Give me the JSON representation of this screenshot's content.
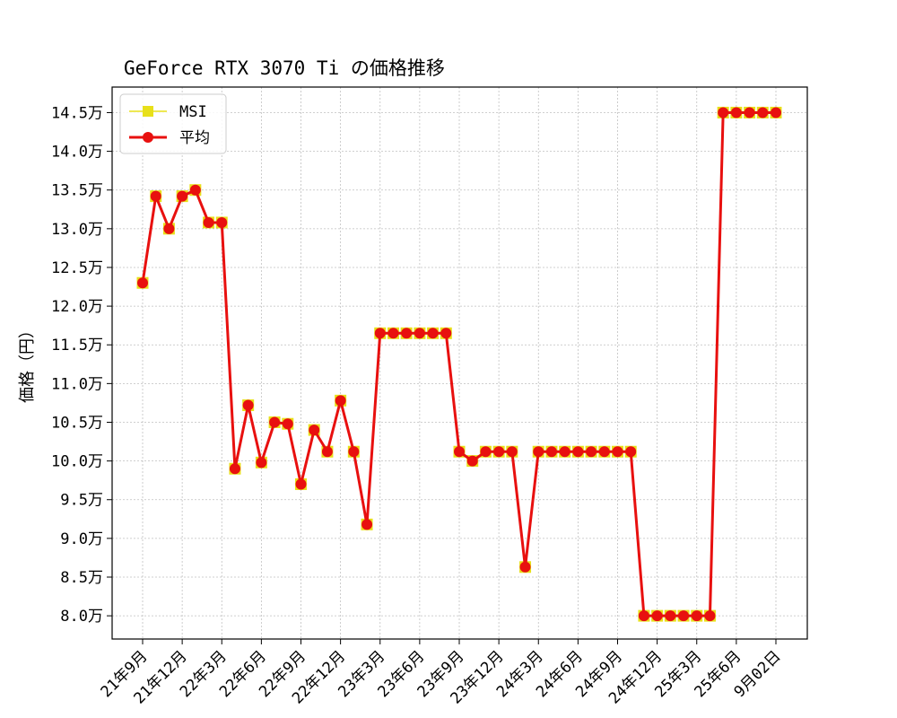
{
  "chart_data": {
    "type": "line",
    "title": "GeForce RTX 3070 Ti の価格推移",
    "xlabel": "",
    "ylabel": "価格（円）",
    "ylim": [
      77000,
      148300
    ],
    "y_ticks": [
      80000,
      85000,
      90000,
      95000,
      100000,
      105000,
      110000,
      115000,
      120000,
      125000,
      130000,
      135000,
      140000,
      145000
    ],
    "y_tick_labels": [
      "8.0万",
      "8.5万",
      "9.0万",
      "9.5万",
      "10.0万",
      "10.5万",
      "11.0万",
      "11.5万",
      "12.0万",
      "12.5万",
      "13.0万",
      "13.5万",
      "14.0万",
      "14.5万"
    ],
    "x_tick_labels": [
      "21年9月",
      "21年12月",
      "22年3月",
      "22年6月",
      "22年9月",
      "22年12月",
      "23年3月",
      "23年6月",
      "23年9月",
      "23年12月",
      "24年3月",
      "24年6月",
      "24年9月",
      "24年12月",
      "25年3月",
      "25年6月",
      "9月02日"
    ],
    "x_tick_indices": [
      0,
      3,
      6,
      9,
      12,
      15,
      18,
      21,
      24,
      27,
      30,
      33,
      36,
      39,
      42,
      45,
      48
    ],
    "x_count": 49,
    "grid": true,
    "legend_position": "top-left",
    "series": [
      {
        "name": "MSI",
        "color": "#e8e01a",
        "marker": "square",
        "values": [
          123000,
          134200,
          130000,
          134200,
          135000,
          130800,
          130800,
          99000,
          107200,
          99800,
          105000,
          104800,
          97000,
          104000,
          101200,
          107800,
          101200,
          91800,
          116500,
          116500,
          116500,
          116500,
          116500,
          116500,
          101200,
          100000,
          101200,
          101200,
          101200,
          86300,
          101200,
          101200,
          101200,
          101200,
          101200,
          101200,
          101200,
          101200,
          80000,
          80000,
          80000,
          80000,
          80000,
          80000,
          145000,
          145000,
          145000,
          145000,
          145000
        ]
      },
      {
        "name": "平均",
        "color": "#e8100f",
        "marker": "circle",
        "values": [
          123000,
          134200,
          130000,
          134200,
          135000,
          130800,
          130800,
          99000,
          107200,
          99800,
          105000,
          104800,
          97000,
          104000,
          101200,
          107800,
          101200,
          91800,
          116500,
          116500,
          116500,
          116500,
          116500,
          116500,
          101200,
          100000,
          101200,
          101200,
          101200,
          86300,
          101200,
          101200,
          101200,
          101200,
          101200,
          101200,
          101200,
          101200,
          80000,
          80000,
          80000,
          80000,
          80000,
          80000,
          145000,
          145000,
          145000,
          145000,
          145000
        ]
      }
    ]
  }
}
